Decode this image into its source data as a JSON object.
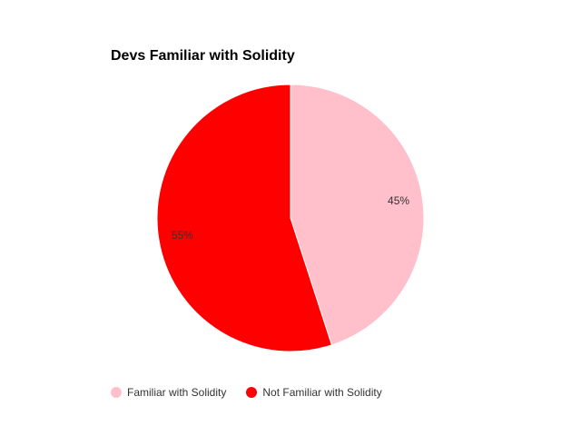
{
  "chart_data": {
    "type": "pie",
    "title": "Devs Familiar with Solidity",
    "categories": [
      "Familiar with Solidity",
      "Not Familiar with Solidity"
    ],
    "values": [
      45,
      55
    ],
    "labels": [
      "45%",
      "55%"
    ],
    "colors": [
      "#ffc0cb",
      "#ff0000"
    ],
    "start_angle": "top, clockwise",
    "legend_position": "bottom"
  }
}
